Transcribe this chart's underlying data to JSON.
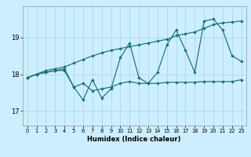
{
  "xlabel": "Humidex (Indice chaleur)",
  "background_color": "#cceeff",
  "grid_color": "#aadddd",
  "line_color": "#1a7070",
  "xlim": [
    -0.5,
    23.5
  ],
  "ylim": [
    16.6,
    19.85
  ],
  "yticks": [
    17,
    18,
    19
  ],
  "xticks": [
    0,
    1,
    2,
    3,
    4,
    5,
    6,
    7,
    8,
    9,
    10,
    11,
    12,
    13,
    14,
    15,
    16,
    17,
    18,
    19,
    20,
    21,
    22,
    23
  ],
  "series1_x": [
    0,
    1,
    2,
    3,
    4,
    5,
    6,
    7,
    8,
    9,
    10,
    11,
    12,
    13,
    14,
    15,
    16,
    17,
    18,
    19,
    20,
    21,
    22,
    23
  ],
  "series1_y": [
    17.9,
    18.0,
    18.05,
    18.1,
    18.15,
    17.65,
    17.3,
    17.85,
    17.35,
    17.6,
    18.45,
    18.85,
    17.9,
    17.75,
    18.05,
    18.8,
    19.2,
    18.65,
    18.05,
    19.45,
    19.5,
    19.2,
    18.5,
    18.35
  ],
  "series2_x": [
    0,
    1,
    2,
    3,
    4,
    5,
    6,
    7,
    8,
    9,
    10,
    11,
    12,
    13,
    14,
    15,
    16,
    17,
    18,
    19,
    20,
    21,
    22,
    23
  ],
  "series2_y": [
    17.9,
    18.0,
    18.05,
    18.1,
    18.1,
    17.65,
    17.75,
    17.55,
    17.6,
    17.65,
    17.75,
    17.8,
    17.75,
    17.75,
    17.75,
    17.78,
    17.78,
    17.78,
    17.78,
    17.8,
    17.8,
    17.8,
    17.8,
    17.85
  ],
  "series3_x": [
    0,
    1,
    2,
    3,
    4,
    5,
    6,
    7,
    8,
    9,
    10,
    11,
    12,
    13,
    14,
    15,
    16,
    17,
    18,
    19,
    20,
    21,
    22,
    23
  ],
  "series3_y": [
    17.9,
    18.0,
    18.1,
    18.15,
    18.2,
    18.3,
    18.4,
    18.5,
    18.58,
    18.65,
    18.7,
    18.75,
    18.8,
    18.85,
    18.9,
    18.95,
    19.05,
    19.1,
    19.15,
    19.25,
    19.35,
    19.4,
    19.42,
    19.45
  ]
}
